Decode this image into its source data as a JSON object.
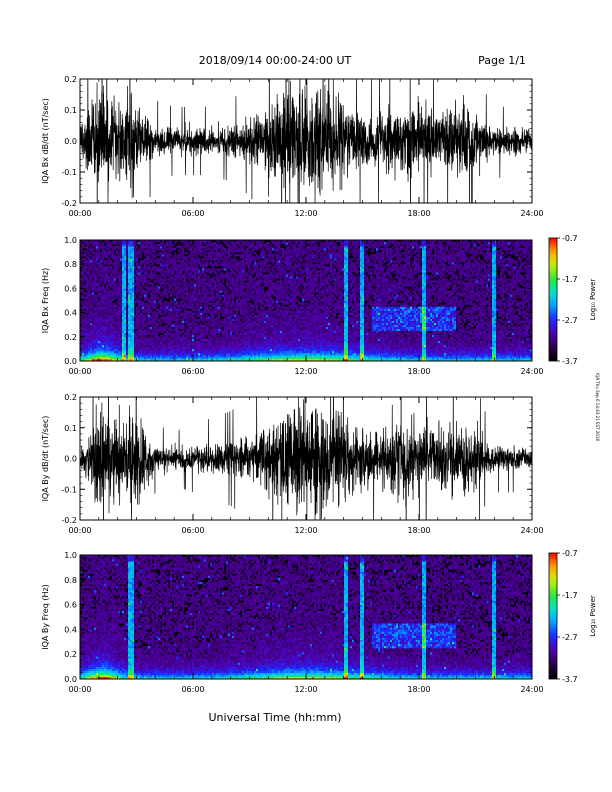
{
  "header": {
    "title": "2018/09/14   00:00-24:00 UT",
    "page": "Page 1/1"
  },
  "side_note": "IQA Thu Sep 6 14:43:21 EST 2018",
  "colors": {
    "trace": "#000000",
    "axis": "#000000",
    "background": "#ffffff",
    "spectrogram_background": "#000000"
  },
  "chart_data": [
    {
      "type": "line",
      "ylabel": "IQA Bx dB/dt (nT/sec)",
      "ylim": [
        -0.2,
        0.2
      ],
      "yticks": [
        "-0.2",
        "-0.1",
        "0.0",
        "0.1",
        "0.2"
      ],
      "yticks_values": [
        -0.2,
        -0.1,
        0.0,
        0.1,
        0.2
      ],
      "xlim": [
        0,
        24
      ],
      "xticks": [
        "00:00",
        "06:00",
        "12:00",
        "18:00",
        "24:00"
      ],
      "xticks_values": [
        0,
        6,
        12,
        18,
        24
      ],
      "envelope": {
        "hours": [
          0,
          0.5,
          1,
          1.5,
          2,
          2.5,
          3,
          3.5,
          4,
          5,
          6,
          7,
          8,
          9,
          9.5,
          10,
          10.5,
          11,
          11.5,
          12,
          12.5,
          13,
          13.5,
          14,
          14.5,
          15,
          15.5,
          16,
          16.5,
          17,
          17.5,
          18,
          18.5,
          19,
          19.5,
          20,
          20.5,
          21,
          21.5,
          22,
          22.5,
          23,
          24
        ],
        "amplitude": [
          0.04,
          0.15,
          0.2,
          0.2,
          0.13,
          0.2,
          0.2,
          0.1,
          0.06,
          0.05,
          0.05,
          0.05,
          0.06,
          0.08,
          0.1,
          0.13,
          0.18,
          0.22,
          0.22,
          0.22,
          0.22,
          0.22,
          0.2,
          0.15,
          0.12,
          0.1,
          0.09,
          0.1,
          0.12,
          0.15,
          0.14,
          0.12,
          0.13,
          0.1,
          0.12,
          0.13,
          0.15,
          0.11,
          0.07,
          0.06,
          0.05,
          0.05,
          0.04
        ]
      }
    },
    {
      "type": "heatmap",
      "ylabel": "IQA Bx Freq (Hz)",
      "ylim": [
        0,
        1.0
      ],
      "yticks": [
        "0.0",
        "0.2",
        "0.4",
        "0.6",
        "0.8",
        "1.0"
      ],
      "yticks_values": [
        0,
        0.2,
        0.4,
        0.6,
        0.8,
        1.0
      ],
      "xlim": [
        0,
        24
      ],
      "xticks": [
        "00:00",
        "06:00",
        "12:00",
        "18:00",
        "24:00"
      ],
      "xticks_values": [
        0,
        6,
        12,
        18,
        24
      ],
      "colorbar": {
        "label": "Log₁₀ Power",
        "ticks": [
          "-0.7",
          "-1.7",
          "-2.7",
          "-3.7"
        ],
        "ticks_values": [
          -0.7,
          -1.7,
          -2.7,
          -3.7
        ],
        "range": [
          -3.7,
          -0.7
        ]
      },
      "features": {
        "vertical_lines_hours": [
          2.3,
          2.7,
          14.1,
          15.0,
          18.3,
          22.0
        ],
        "band_hours": [
          15.5,
          20.0
        ],
        "band_freq_hz": [
          0.25,
          0.45
        ]
      }
    },
    {
      "type": "line",
      "ylabel": "IQA By dB/dt (nT/sec)",
      "ylim": [
        -0.2,
        0.2
      ],
      "yticks": [
        "-0.2",
        "-0.1",
        "0.0",
        "0.1",
        "0.2"
      ],
      "yticks_values": [
        -0.2,
        -0.1,
        0.0,
        0.1,
        0.2
      ],
      "xlim": [
        0,
        24
      ],
      "xticks": [
        "00:00",
        "06:00",
        "12:00",
        "18:00",
        "24:00"
      ],
      "xticks_values": [
        0,
        6,
        12,
        18,
        24
      ],
      "envelope": {
        "hours": [
          0,
          0.5,
          1,
          1.5,
          2,
          2.5,
          3,
          3.5,
          4,
          5,
          6,
          7,
          8,
          9,
          9.5,
          10,
          10.5,
          11,
          11.5,
          12,
          12.5,
          13,
          13.5,
          14,
          14.5,
          15,
          15.5,
          16,
          16.5,
          17,
          17.5,
          18,
          18.5,
          19,
          19.5,
          20,
          20.5,
          21,
          21.5,
          22,
          22.5,
          23,
          24
        ],
        "amplitude": [
          0.03,
          0.12,
          0.2,
          0.2,
          0.13,
          0.2,
          0.2,
          0.1,
          0.05,
          0.04,
          0.05,
          0.06,
          0.07,
          0.09,
          0.11,
          0.14,
          0.18,
          0.22,
          0.22,
          0.22,
          0.22,
          0.22,
          0.2,
          0.16,
          0.13,
          0.11,
          0.1,
          0.12,
          0.14,
          0.16,
          0.14,
          0.12,
          0.14,
          0.12,
          0.13,
          0.14,
          0.15,
          0.11,
          0.07,
          0.05,
          0.05,
          0.05,
          0.04
        ]
      }
    },
    {
      "type": "heatmap",
      "ylabel": "IQA By Freq (Hz)",
      "ylim": [
        0,
        1.0
      ],
      "yticks": [
        "0.0",
        "0.2",
        "0.4",
        "0.6",
        "0.8",
        "1.0"
      ],
      "yticks_values": [
        0,
        0.2,
        0.4,
        0.6,
        0.8,
        1.0
      ],
      "xlim": [
        0,
        24
      ],
      "xticks": [
        "00:00",
        "06:00",
        "12:00",
        "18:00",
        "24:00"
      ],
      "xticks_values": [
        0,
        6,
        12,
        18,
        24
      ],
      "xlabel": "Universal Time (hh:mm)",
      "colorbar": {
        "label": "Log₁₀ Power",
        "ticks": [
          "-0.7",
          "-1.7",
          "-2.7",
          "-3.7"
        ],
        "ticks_values": [
          -0.7,
          -1.7,
          -2.7,
          -3.7
        ],
        "range": [
          -3.7,
          -0.7
        ]
      },
      "features": {
        "vertical_lines_hours": [
          2.7,
          14.1,
          15.0,
          18.3,
          22.0
        ],
        "band_hours": [
          15.5,
          20.0
        ],
        "band_freq_hz": [
          0.25,
          0.45
        ]
      }
    }
  ]
}
